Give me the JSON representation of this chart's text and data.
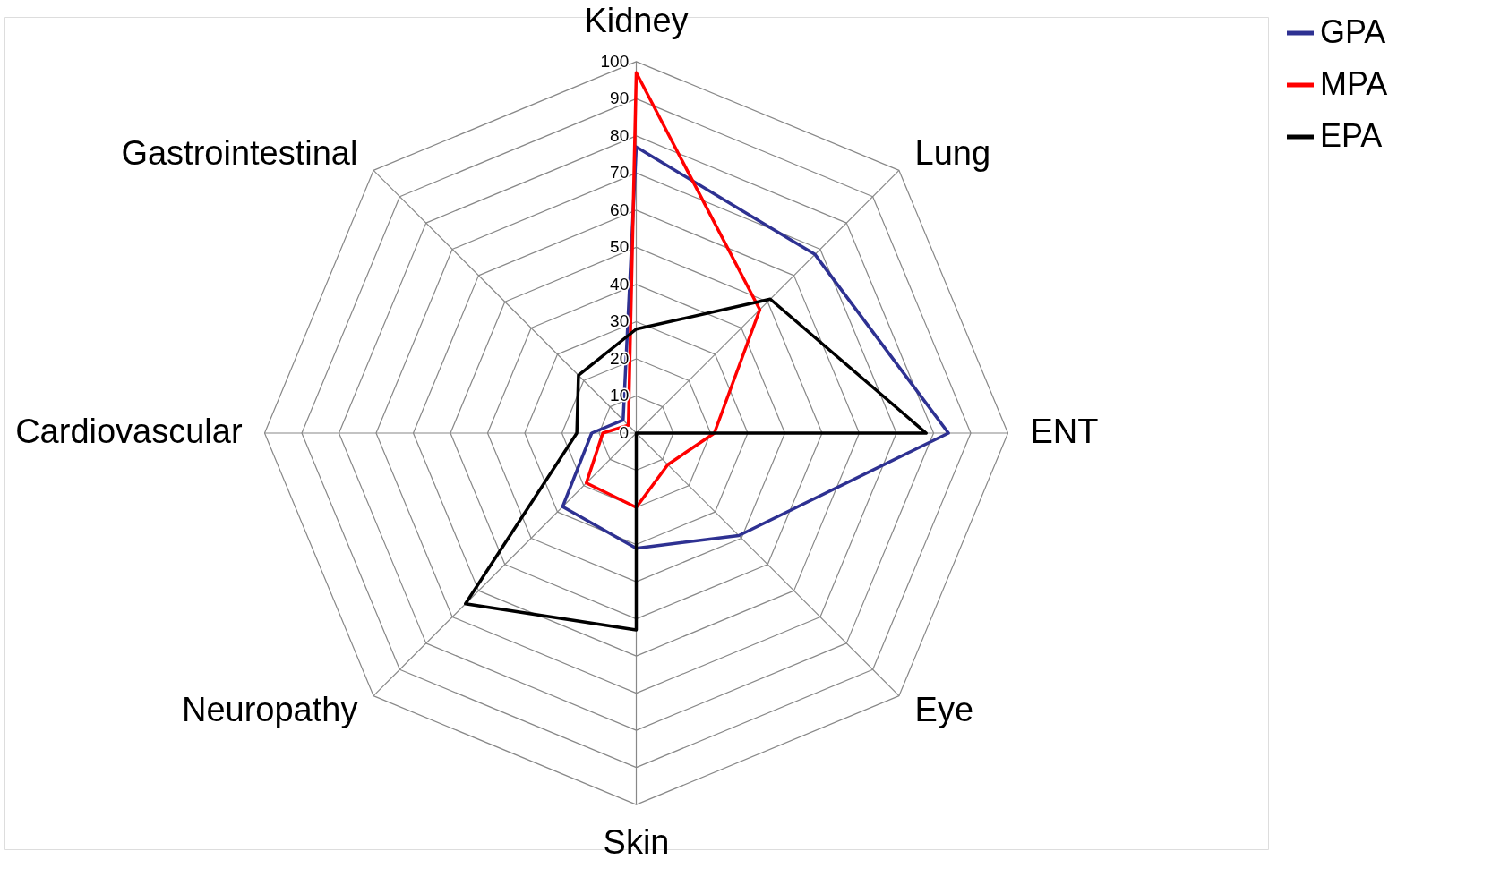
{
  "chart_data": {
    "type": "radar",
    "categories": [
      "Kidney",
      "Lung",
      "ENT",
      "Eye",
      "Skin",
      "Neuropathy",
      "Cardiovascular",
      "Gastrointestinal"
    ],
    "series": [
      {
        "name": "GPA",
        "color": "#2e3192",
        "values": [
          77,
          68,
          84,
          39,
          31,
          28,
          12,
          5
        ]
      },
      {
        "name": "MPA",
        "color": "#ff0000",
        "values": [
          97,
          47,
          21,
          12,
          20,
          19,
          9,
          3
        ]
      },
      {
        "name": "EPA",
        "color": "#000000",
        "values": [
          28,
          51,
          78,
          0,
          53,
          65,
          16,
          22
        ]
      }
    ],
    "ylim": [
      0,
      100
    ],
    "yticks": [
      0,
      10,
      20,
      30,
      40,
      50,
      60,
      70,
      80,
      90,
      100
    ],
    "grid": true,
    "legend": "right"
  }
}
